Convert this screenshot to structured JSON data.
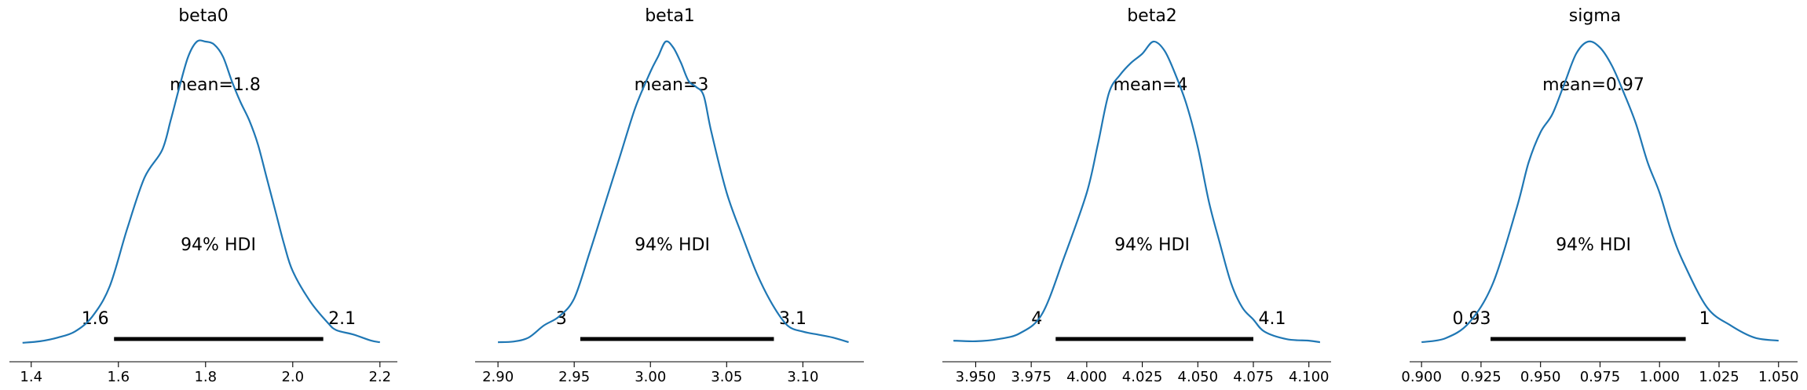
{
  "chart_data": [
    {
      "type": "area",
      "title": "beta0",
      "mean_label": "mean=1.8",
      "hdi_label": "94% HDI",
      "hdi": [
        1.59,
        2.07
      ],
      "hdi_labels": [
        "1.6",
        "2.1"
      ],
      "xlim": [
        1.35,
        2.24
      ],
      "xticks": [
        1.4,
        1.6,
        1.8,
        2.0,
        2.2
      ],
      "xtick_labels": [
        "1.4",
        "1.6",
        "1.8",
        "2.0",
        "2.2"
      ],
      "density": {
        "x": [
          1.38,
          1.42,
          1.46,
          1.5,
          1.54,
          1.58,
          1.62,
          1.66,
          1.7,
          1.72,
          1.74,
          1.76,
          1.78,
          1.8,
          1.82,
          1.84,
          1.86,
          1.88,
          1.9,
          1.92,
          1.94,
          1.96,
          1.98,
          2.0,
          2.04,
          2.08,
          2.1,
          2.14,
          2.18,
          2.2
        ],
        "y": [
          0.003,
          0.008,
          0.02,
          0.04,
          0.09,
          0.19,
          0.38,
          0.55,
          0.64,
          0.74,
          0.85,
          0.95,
          1.0,
          1.0,
          0.99,
          0.95,
          0.87,
          0.8,
          0.74,
          0.66,
          0.55,
          0.44,
          0.33,
          0.24,
          0.14,
          0.07,
          0.045,
          0.03,
          0.01,
          0.005
        ]
      }
    },
    {
      "type": "area",
      "title": "beta1",
      "mean_label": "mean=3",
      "hdi_label": "94% HDI",
      "hdi": [
        2.954,
        3.081
      ],
      "hdi_labels": [
        "3",
        "3.1"
      ],
      "xlim": [
        2.885,
        3.14
      ],
      "xticks": [
        2.9,
        2.95,
        3.0,
        3.05,
        3.1
      ],
      "xtick_labels": [
        "2.90",
        "2.95",
        "3.00",
        "3.05",
        "3.10"
      ],
      "density": {
        "x": [
          2.9,
          2.91,
          2.92,
          2.93,
          2.94,
          2.95,
          2.96,
          2.97,
          2.98,
          2.99,
          3.0,
          3.005,
          3.01,
          3.015,
          3.02,
          3.025,
          3.03,
          3.035,
          3.04,
          3.05,
          3.06,
          3.07,
          3.08,
          3.09,
          3.1,
          3.11,
          3.12,
          3.13
        ],
        "y": [
          0.005,
          0.007,
          0.02,
          0.06,
          0.09,
          0.15,
          0.3,
          0.46,
          0.62,
          0.78,
          0.9,
          0.95,
          1.0,
          0.98,
          0.93,
          0.87,
          0.85,
          0.82,
          0.7,
          0.5,
          0.36,
          0.23,
          0.13,
          0.06,
          0.04,
          0.03,
          0.02,
          0.005
        ]
      }
    },
    {
      "type": "area",
      "title": "beta2",
      "mean_label": "mean=4",
      "hdi_label": "94% HDI",
      "hdi": [
        3.986,
        4.075
      ],
      "hdi_labels": [
        "4",
        "4.1"
      ],
      "xlim": [
        3.935,
        4.11
      ],
      "xticks": [
        3.95,
        3.975,
        4.0,
        4.025,
        4.05,
        4.075,
        4.1
      ],
      "xtick_labels": [
        "3.950",
        "3.975",
        "4.000",
        "4.025",
        "4.050",
        "4.075",
        "4.100"
      ],
      "density": {
        "x": [
          3.94,
          3.95,
          3.96,
          3.97,
          3.98,
          3.99,
          4.0,
          4.005,
          4.01,
          4.015,
          4.02,
          4.025,
          4.03,
          4.035,
          4.04,
          4.045,
          4.05,
          4.055,
          4.06,
          4.065,
          4.07,
          4.075,
          4.08,
          4.09,
          4.1,
          4.105
        ],
        "y": [
          0.01,
          0.008,
          0.015,
          0.035,
          0.1,
          0.29,
          0.5,
          0.66,
          0.83,
          0.89,
          0.93,
          0.96,
          1.0,
          0.97,
          0.89,
          0.79,
          0.65,
          0.47,
          0.33,
          0.2,
          0.12,
          0.08,
          0.04,
          0.015,
          0.01,
          0.005
        ]
      }
    },
    {
      "type": "area",
      "title": "sigma",
      "mean_label": "mean=0.97",
      "hdi_label": "94% HDI",
      "hdi": [
        0.929,
        1.011
      ],
      "hdi_labels": [
        "0.93",
        "1"
      ],
      "xlim": [
        0.895,
        1.058
      ],
      "xticks": [
        0.9,
        0.925,
        0.95,
        0.975,
        1.0,
        1.025,
        1.05
      ],
      "xtick_labels": [
        "0.900",
        "0.925",
        "0.950",
        "0.975",
        "1.000",
        "1.025",
        "1.050"
      ],
      "density": {
        "x": [
          0.9,
          0.91,
          0.92,
          0.93,
          0.94,
          0.945,
          0.95,
          0.955,
          0.96,
          0.965,
          0.97,
          0.975,
          0.98,
          0.985,
          0.99,
          0.995,
          1.0,
          1.005,
          1.01,
          1.02,
          1.03,
          1.04,
          1.05
        ],
        "y": [
          0.005,
          0.018,
          0.07,
          0.2,
          0.45,
          0.6,
          0.7,
          0.76,
          0.86,
          0.96,
          1.0,
          0.98,
          0.92,
          0.83,
          0.73,
          0.6,
          0.5,
          0.37,
          0.27,
          0.12,
          0.06,
          0.02,
          0.01
        ]
      }
    }
  ]
}
